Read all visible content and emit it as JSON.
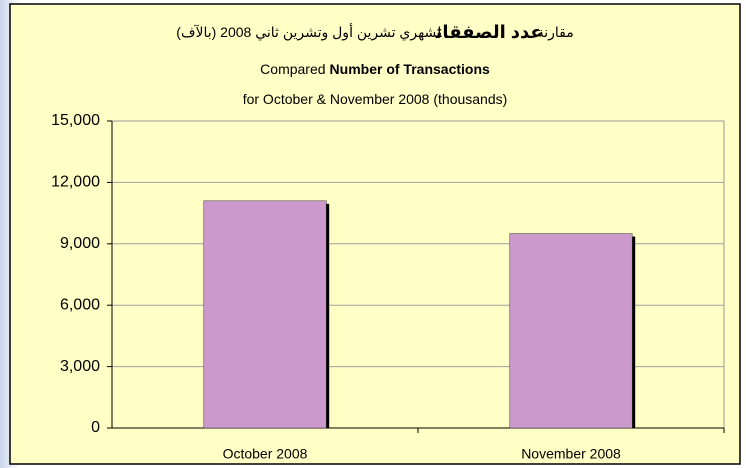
{
  "chart_data": {
    "type": "bar",
    "title": [
      [
        {
          "text": "مقارنة",
          "bold": false
        },
        {
          "text": "عدد الصفقات",
          "bold": true
        },
        {
          "text": "لشهري تشرين أول  وتشرين ثاني  2008 (بالآف)",
          "bold": false
        }
      ],
      [
        {
          "text": "Compared",
          "bold": false
        },
        {
          "text": "Number of Transactions",
          "bold": true
        }
      ],
      [
        {
          "text": "for October & November 2008 (thousands)",
          "bold": false
        }
      ]
    ],
    "categories": [
      "October 2008",
      "November 2008"
    ],
    "values": [
      11100,
      9500
    ],
    "color": "#cc99cc",
    "ylim": [
      0,
      15000
    ],
    "yticks": [
      0,
      {
        "value": 3000,
        "label": "3,000"
      },
      {
        "value": 6000,
        "label": "6,000"
      },
      {
        "value": 9000,
        "label": "9,000"
      },
      {
        "value": 12000,
        "label": "12,000"
      },
      {
        "value": 15000,
        "label": "15,000"
      }
    ],
    "grid": true
  }
}
